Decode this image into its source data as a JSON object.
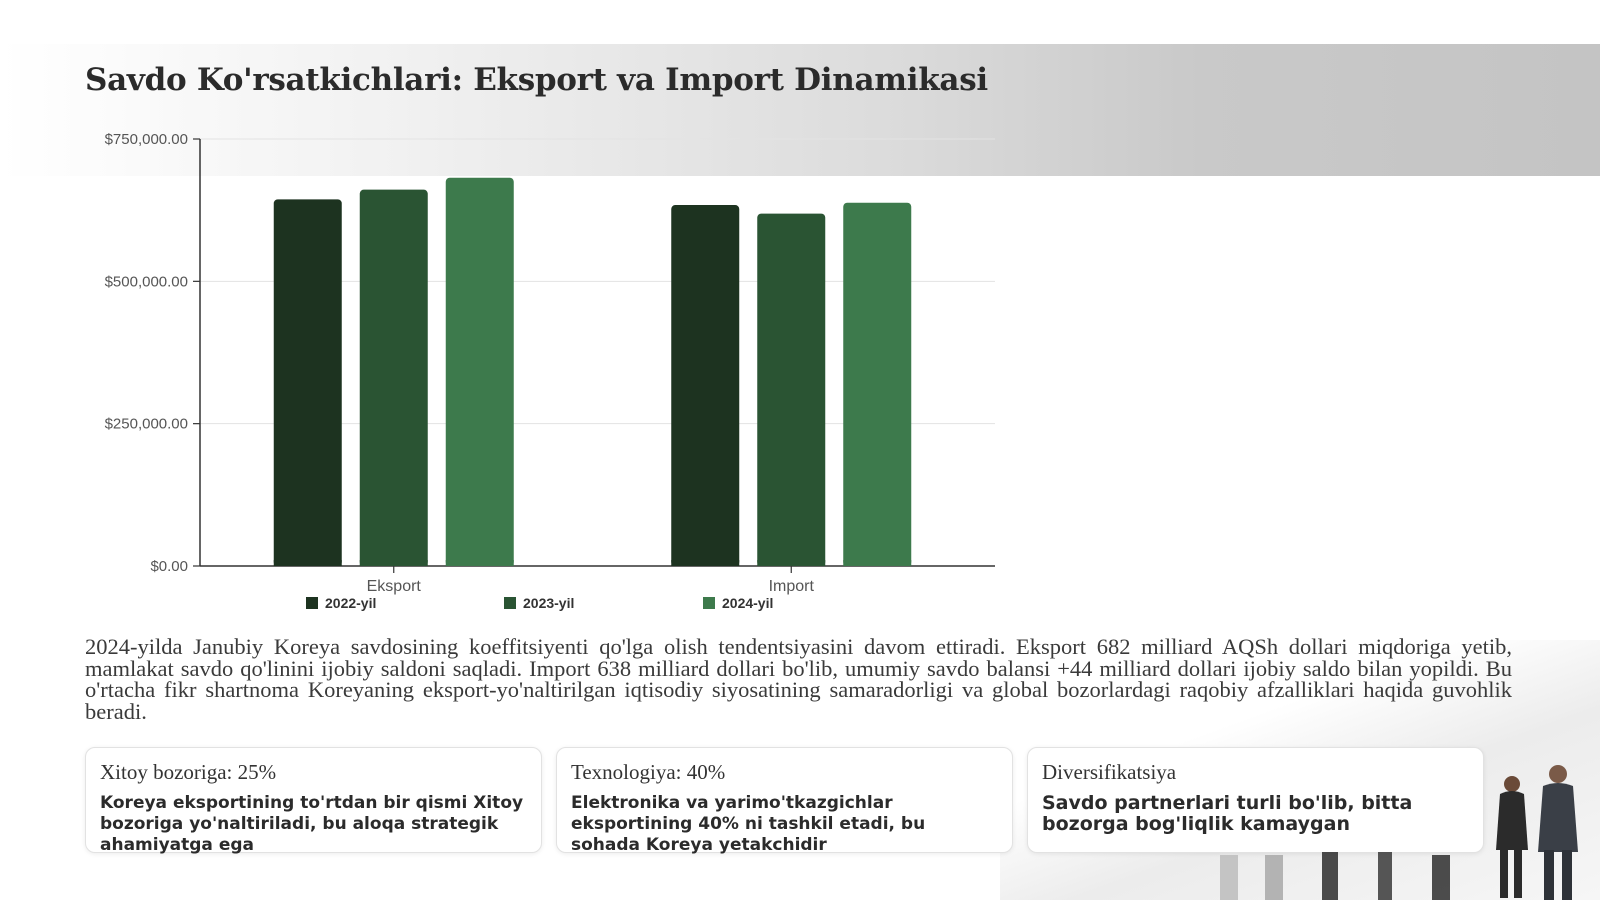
{
  "title": "Savdo Ko'rsatkichlari: Eksport va Import Dinamikasi",
  "chart_data": {
    "type": "bar",
    "categories": [
      "Eksport",
      "Import"
    ],
    "series": [
      {
        "name": "2022-yil",
        "values": [
          644000,
          634000
        ],
        "color": "#1d3320"
      },
      {
        "name": "2023-yil",
        "values": [
          661000,
          619000
        ],
        "color": "#2a5433"
      },
      {
        "name": "2024-yil",
        "values": [
          682000,
          638000
        ],
        "color": "#3d7a4c"
      }
    ],
    "ylim": [
      0,
      750000
    ],
    "yticks": [
      0,
      250000,
      500000,
      750000
    ],
    "ytick_labels": [
      "$0.00",
      "$250,000.00",
      "$500,000.00",
      "$750,000.00"
    ],
    "grid": true,
    "legend_position": "bottom"
  },
  "paragraph": "2024-yilda Janubiy Koreya savdosining koeffitsiyenti qo'lga olish tendentsiyasini davom ettiradi. Eksport 682 milliard AQSh dollari miqdoriga yetib, mamlakat savdo qo'linini ijobiy saldoni saqladi. Import 638 milliard dollari bo'lib, umumiy savdo balansi +44 milliard dollari ijobiy saldo bilan yopildi. Bu o'rtacha fikr shartnoma Koreyaning eksport-yo'naltirilgan iqtisodiy siyosatining samaradorligi va global bozorlardagi raqobiy afzalliklari haqida guvohlik beradi.",
  "cards": [
    {
      "title": "Xitoy bozoriga: 25%",
      "text": "Koreya eksportining to'rtdan bir qismi Xitoy bozoriga yo'naltiriladi, bu aloqa strategik ahamiyatga ega"
    },
    {
      "title": "Texnologiya: 40%",
      "text": "Elektronika va yarimo'tkazgichlar eksportining 40% ni tashkil etadi, bu sohada Koreya yetakchidir"
    },
    {
      "title": "Diversifikatsiya",
      "text": "Savdo partnerlari turli bo'lib, bitta bozorga bog'liqlik kamaygan"
    }
  ]
}
